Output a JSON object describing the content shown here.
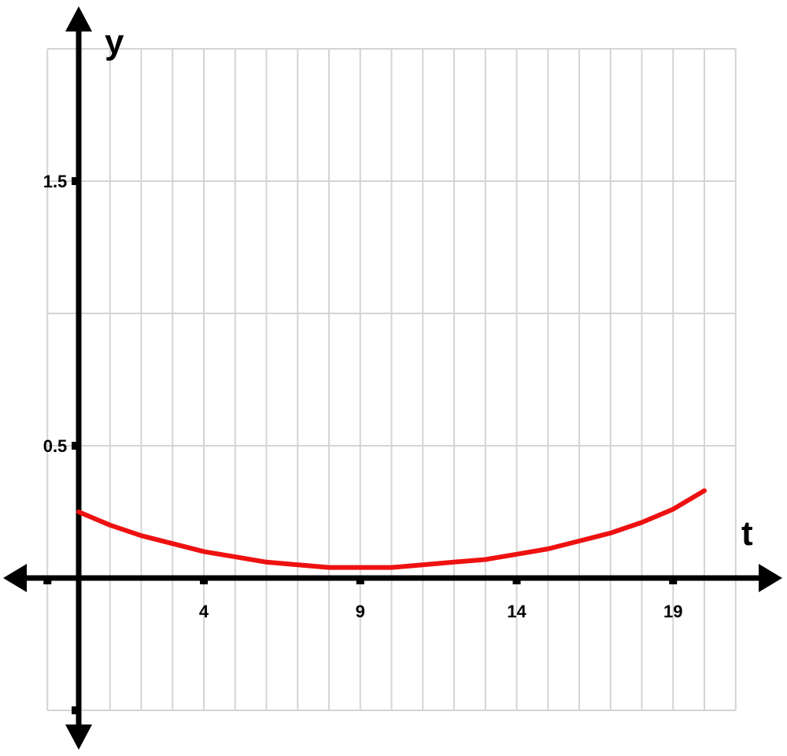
{
  "chart_data": {
    "type": "line",
    "title": "",
    "xlabel": "t",
    "ylabel": "y",
    "xlim": [
      -1,
      21
    ],
    "ylim": [
      -0.5,
      2
    ],
    "x_ticks": [
      4,
      9,
      14,
      19
    ],
    "y_ticks": [
      0.5,
      1.5
    ],
    "x_tick_labels": [
      "4",
      "9",
      "14",
      "19"
    ],
    "y_tick_labels": [
      "0.5",
      "1.5"
    ],
    "grid": true,
    "legend": "none",
    "series": [
      {
        "x": [
          0,
          1,
          2,
          3,
          4,
          5,
          6,
          7,
          8,
          9,
          10,
          11,
          12,
          13,
          14,
          15,
          16,
          17,
          18,
          19,
          20
        ],
        "y": [
          0.25,
          0.2,
          0.16,
          0.13,
          0.1,
          0.08,
          0.06,
          0.05,
          0.04,
          0.04,
          0.04,
          0.05,
          0.06,
          0.07,
          0.09,
          0.11,
          0.14,
          0.17,
          0.21,
          0.26,
          0.33
        ],
        "color": "#ee1111"
      }
    ]
  },
  "colors": {
    "grid": "#d4d4d4",
    "axis": "#000000",
    "curve": "#ee1111"
  }
}
